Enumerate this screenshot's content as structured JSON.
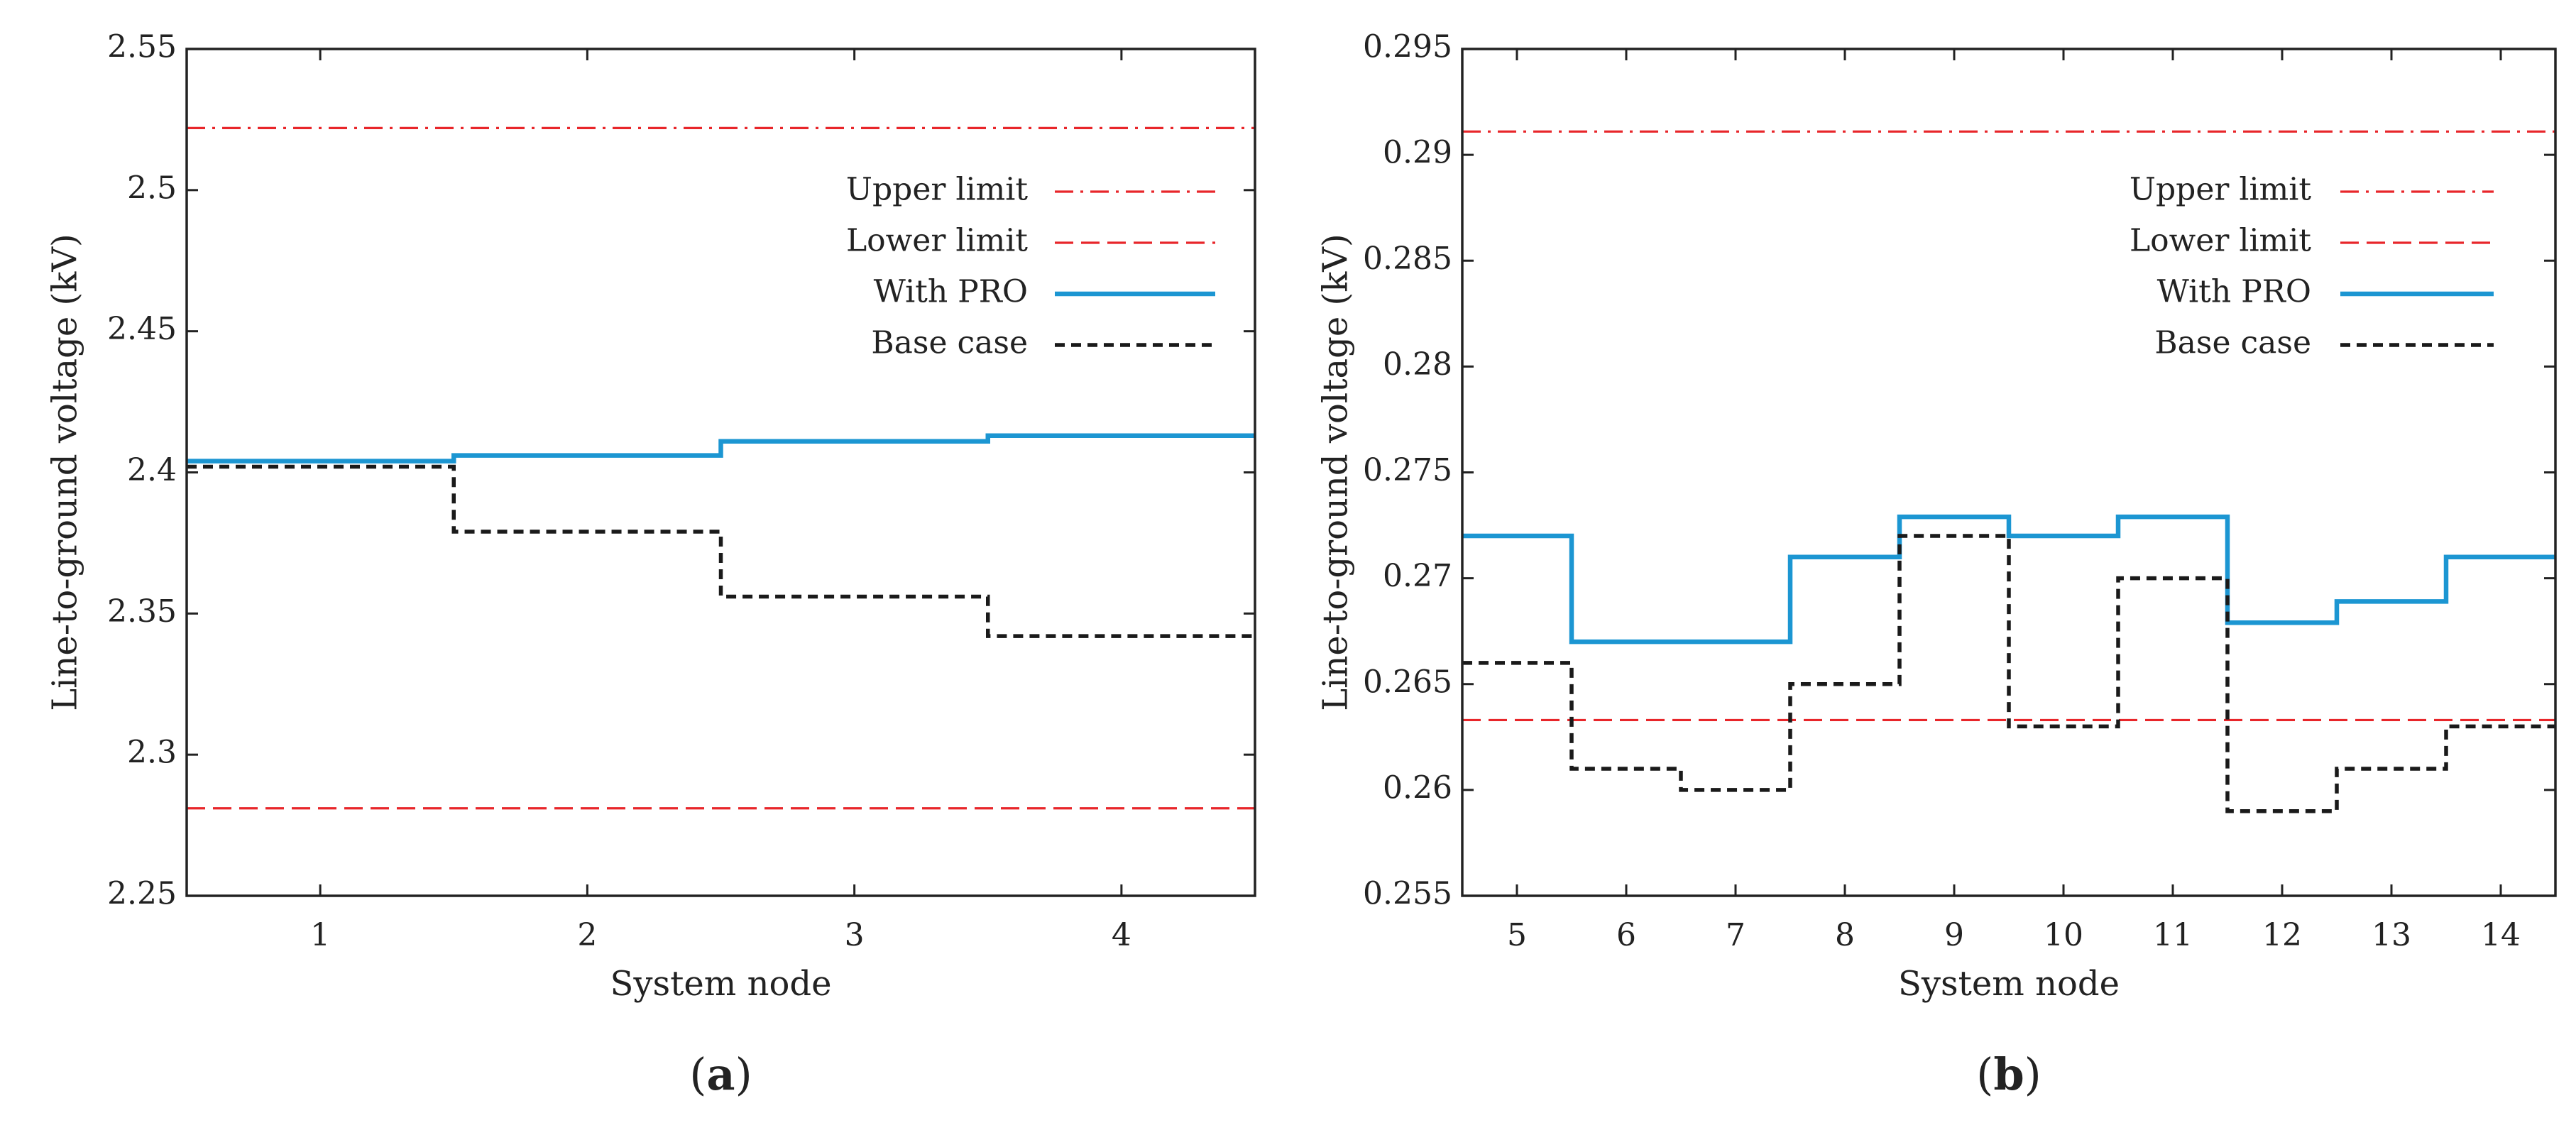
{
  "colors": {
    "limit": "#e8262a",
    "with_pro": "#1c96d2",
    "base_case": "#1a1a1a",
    "axis": "#222222"
  },
  "chart_data": [
    {
      "type": "line",
      "step": "mid",
      "caption": "(a)",
      "caption_letter": "a",
      "xlabel": "System node",
      "ylabel": "Line-to-ground voltage (kV)",
      "xlim": [
        0.5,
        4.5
      ],
      "ylim": [
        2.25,
        2.55
      ],
      "x_ticks": [
        1,
        2,
        3,
        4
      ],
      "y_ticks": [
        2.25,
        2.3,
        2.35,
        2.4,
        2.45,
        2.5,
        2.55
      ],
      "y_tick_labels": [
        "2.25",
        "2.3",
        "2.35",
        "2.4",
        "2.45",
        "2.5",
        "2.55"
      ],
      "x": [
        1,
        2,
        3,
        4
      ],
      "series": [
        {
          "name": "Upper limit",
          "style": "dashdot",
          "constant": 2.522
        },
        {
          "name": "Lower limit",
          "style": "dashed",
          "constant": 2.281
        },
        {
          "name": "With PRO",
          "style": "solid",
          "values": [
            2.404,
            2.406,
            2.411,
            2.413
          ]
        },
        {
          "name": "Base case",
          "style": "dotted",
          "values": [
            2.402,
            2.379,
            2.356,
            2.342
          ]
        }
      ],
      "legend_position": "top-right"
    },
    {
      "type": "line",
      "step": "mid",
      "caption": "(b)",
      "caption_letter": "b",
      "xlabel": "System node",
      "ylabel": "Line-to-ground voltage (kV)",
      "xlim": [
        4.5,
        14.5
      ],
      "ylim": [
        0.255,
        0.295
      ],
      "x_ticks": [
        5,
        6,
        7,
        8,
        9,
        10,
        11,
        12,
        13,
        14
      ],
      "y_ticks": [
        0.255,
        0.26,
        0.265,
        0.27,
        0.275,
        0.28,
        0.285,
        0.29,
        0.295
      ],
      "y_tick_labels": [
        "0.255",
        "0.26",
        "0.265",
        "0.27",
        "0.275",
        "0.28",
        "0.285",
        "0.29",
        "0.295"
      ],
      "x": [
        5,
        6,
        7,
        8,
        9,
        10,
        11,
        12,
        13,
        14
      ],
      "series": [
        {
          "name": "Upper limit",
          "style": "dashdot",
          "constant": 0.2911
        },
        {
          "name": "Lower limit",
          "style": "dashed",
          "constant": 0.2633
        },
        {
          "name": "With PRO",
          "style": "solid",
          "values": [
            0.272,
            0.267,
            0.267,
            0.271,
            0.2729,
            0.272,
            0.2729,
            0.2679,
            0.2689,
            0.271
          ]
        },
        {
          "name": "Base case",
          "style": "dotted",
          "values": [
            0.266,
            0.261,
            0.26,
            0.265,
            0.272,
            0.263,
            0.27,
            0.259,
            0.261,
            0.263
          ]
        }
      ],
      "legend_position": "top-right"
    }
  ]
}
